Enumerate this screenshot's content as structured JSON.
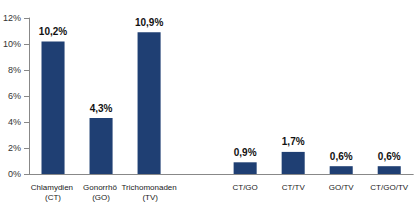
{
  "chart_data": {
    "type": "bar",
    "categories": [
      "Chlamydien (CT)",
      "Gonorrhö (GO)",
      "Trichomonaden (TV)",
      null,
      "CT/GO",
      "CT/TV",
      "GO/TV",
      "CT/GO/TV"
    ],
    "values": [
      10.2,
      4.3,
      10.9,
      null,
      0.9,
      1.7,
      0.6,
      0.6
    ],
    "value_labels": [
      "10,2%",
      "4,3%",
      "10,9%",
      null,
      "0,9%",
      "1,7%",
      "0,6%",
      "0,6%"
    ],
    "color": "#1f3f73",
    "ylim": [
      0,
      12
    ],
    "yticks": [
      {
        "value": 0,
        "label": "0%"
      },
      {
        "value": 2,
        "label": "2%"
      },
      {
        "value": 4,
        "label": "4%"
      },
      {
        "value": 6,
        "label": "6%"
      },
      {
        "value": 8,
        "label": "8%"
      },
      {
        "value": 10,
        "label": "10%"
      },
      {
        "value": 12,
        "label": "12%"
      }
    ],
    "grid": false,
    "data_labels": true
  }
}
